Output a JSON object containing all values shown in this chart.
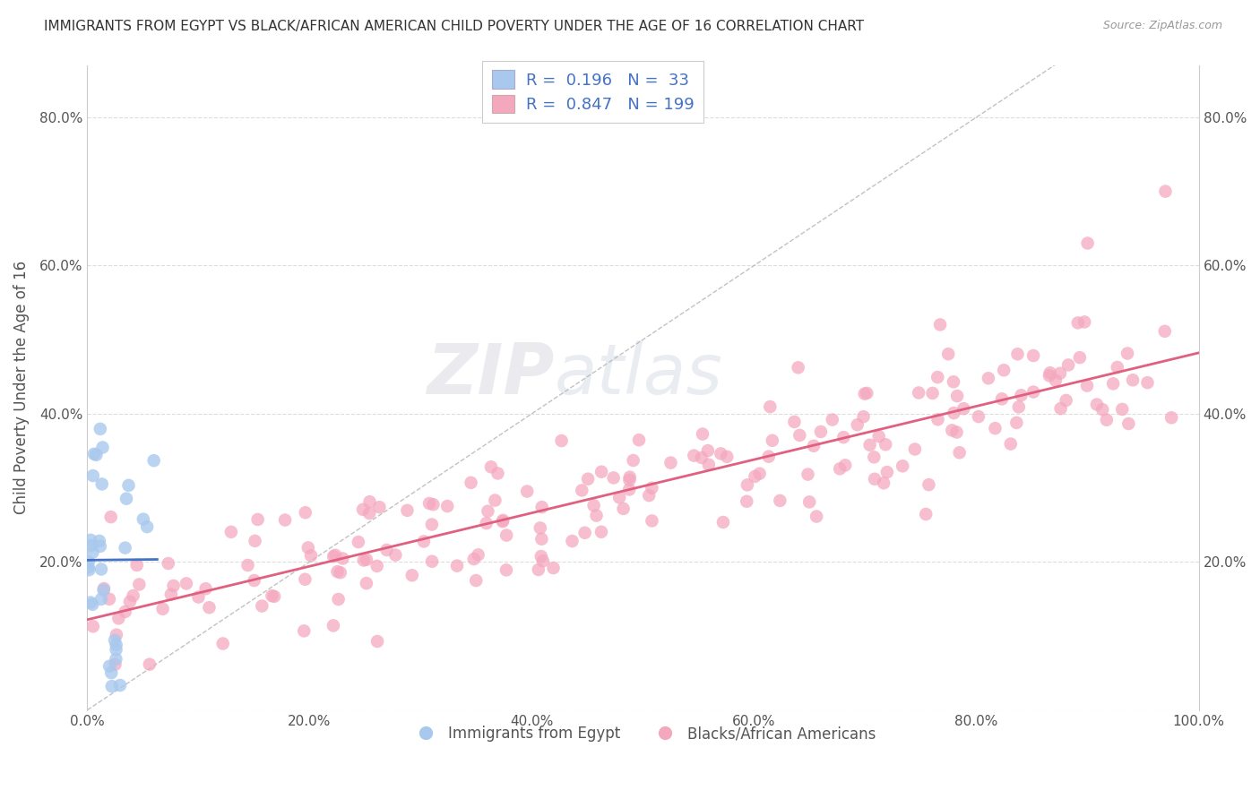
{
  "title": "IMMIGRANTS FROM EGYPT VS BLACK/AFRICAN AMERICAN CHILD POVERTY UNDER THE AGE OF 16 CORRELATION CHART",
  "source": "Source: ZipAtlas.com",
  "ylabel": "Child Poverty Under the Age of 16",
  "r_blue": 0.196,
  "n_blue": 33,
  "r_pink": 0.847,
  "n_pink": 199,
  "xlim": [
    0.0,
    1.0
  ],
  "ylim": [
    0.0,
    0.87
  ],
  "xticks": [
    0.0,
    0.2,
    0.4,
    0.6,
    0.8,
    1.0
  ],
  "yticks": [
    0.0,
    0.2,
    0.4,
    0.6,
    0.8
  ],
  "xtick_labels": [
    "0.0%",
    "20.0%",
    "40.0%",
    "60.0%",
    "80.0%",
    "100.0%"
  ],
  "ytick_labels": [
    "",
    "20.0%",
    "40.0%",
    "60.0%",
    "80.0%"
  ],
  "right_ytick_labels": [
    "20.0%",
    "40.0%",
    "60.0%",
    "80.0%"
  ],
  "right_yticks": [
    0.2,
    0.4,
    0.6,
    0.8
  ],
  "color_blue": "#A8C8EE",
  "color_pink": "#F4A8BE",
  "line_blue": "#4472C4",
  "line_pink": "#E06080",
  "line_diag_color": "#BBBBBB",
  "watermark": "ZIPatlas",
  "legend_label_blue": "Immigrants from Egypt",
  "legend_label_pink": "Blacks/African Americans",
  "background_color": "#FFFFFF",
  "grid_color": "#DDDDDD",
  "text_color": "#4472C4",
  "label_color": "#555555"
}
